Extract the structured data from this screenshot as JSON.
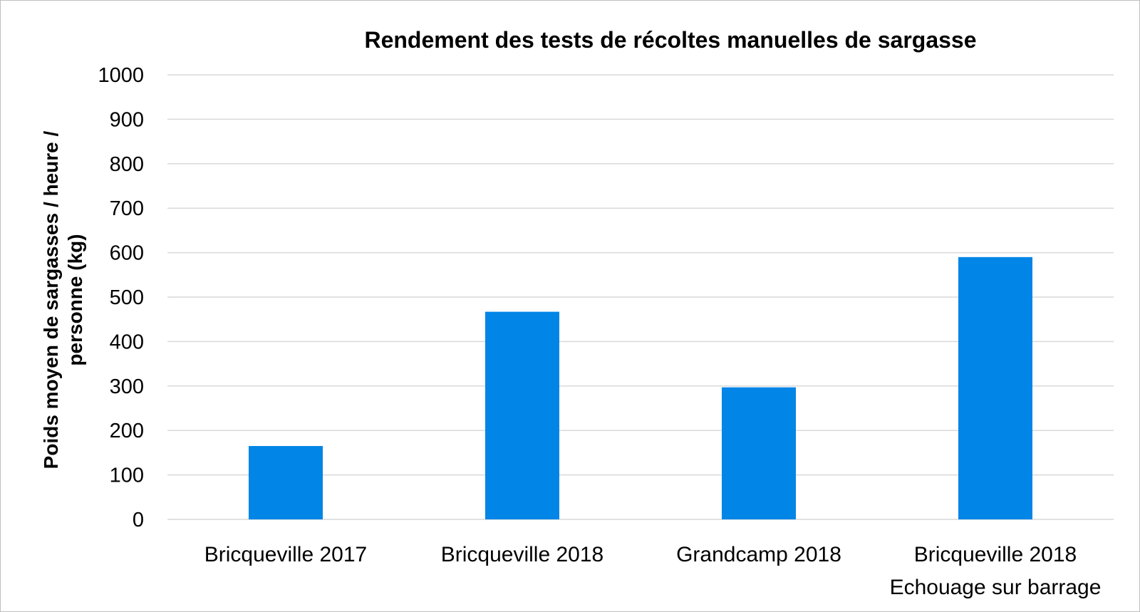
{
  "chart_data": {
    "type": "bar",
    "title": "Rendement des tests de récoltes manuelles de sargasse",
    "xlabel": "",
    "ylabel": [
      "Poids moyen de sargasses / heure /",
      "personne (kg)"
    ],
    "categories": [
      [
        "Bricqueville 2017"
      ],
      [
        "Bricqueville 2018"
      ],
      [
        "Grandcamp 2018"
      ],
      [
        "Bricqueville 2018",
        "Echouage sur barrage"
      ]
    ],
    "values": [
      165,
      467,
      297,
      590
    ],
    "ylim": [
      0,
      1000
    ],
    "yticks": [
      0,
      100,
      200,
      300,
      400,
      500,
      600,
      700,
      800,
      900,
      1000
    ],
    "grid": true,
    "legend": "none",
    "bar_color": "#0185E6",
    "grid_color": "#d9d9d9"
  }
}
